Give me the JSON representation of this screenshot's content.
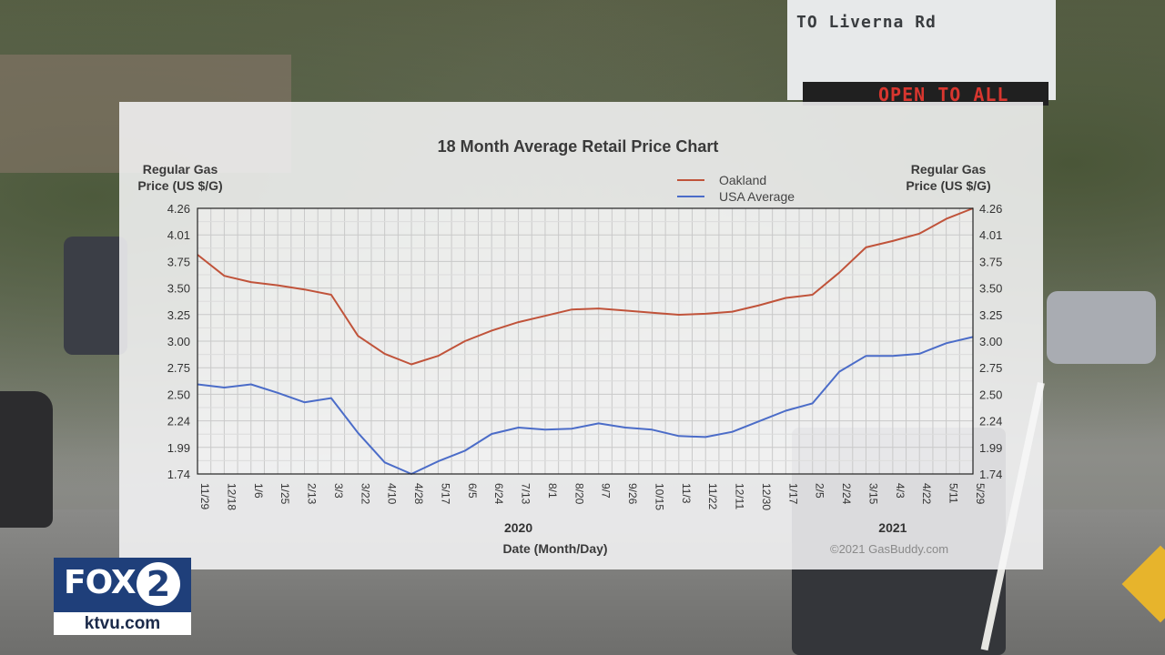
{
  "background": {
    "sign_text": "TO Liverna Rd",
    "led_text": "OPEN TO ALL"
  },
  "logo": {
    "brand": "FOX",
    "channel": "2",
    "url": "ktvu.com",
    "color": "#1f3f7a"
  },
  "chart_data": {
    "type": "line",
    "title": "18 Month Average Retail Price Chart",
    "ylabel_left": "Regular Gas Price (US $/G)",
    "ylabel_right": "Regular Gas Price (US $/G)",
    "xlabel": "Date (Month/Day)",
    "watermark": "©2021 GasBuddy.com",
    "years": [
      {
        "label": "2020",
        "at": "7/13"
      },
      {
        "label": "2021",
        "at": "4/3"
      }
    ],
    "ylim": [
      1.74,
      4.26
    ],
    "yticks": [
      "4.26",
      "4.01",
      "3.75",
      "3.50",
      "3.25",
      "3.00",
      "2.75",
      "2.50",
      "2.24",
      "1.99",
      "1.74"
    ],
    "x": [
      "11/29",
      "12/18",
      "1/6",
      "1/25",
      "2/13",
      "3/3",
      "3/22",
      "4/10",
      "4/28",
      "5/17",
      "6/5",
      "6/24",
      "7/13",
      "8/1",
      "8/20",
      "9/7",
      "9/26",
      "10/15",
      "11/3",
      "11/22",
      "12/11",
      "12/30",
      "1/17",
      "2/5",
      "2/24",
      "3/15",
      "4/3",
      "4/22",
      "5/11",
      "5/29"
    ],
    "grid": true,
    "legend_position": "top-right",
    "series": [
      {
        "name": "Oakland",
        "color": "#c0533a",
        "values": [
          3.82,
          3.62,
          3.56,
          3.53,
          3.49,
          3.44,
          3.05,
          2.88,
          2.78,
          2.86,
          3.0,
          3.1,
          3.18,
          3.24,
          3.3,
          3.31,
          3.29,
          3.27,
          3.25,
          3.26,
          3.28,
          3.34,
          3.41,
          3.44,
          3.65,
          3.89,
          3.95,
          4.02,
          4.16,
          4.26
        ]
      },
      {
        "name": "USA Average",
        "color": "#4b6cc8",
        "values": [
          2.59,
          2.56,
          2.59,
          2.51,
          2.42,
          2.46,
          2.13,
          1.85,
          1.74,
          1.86,
          1.96,
          2.12,
          2.18,
          2.16,
          2.17,
          2.22,
          2.18,
          2.16,
          2.1,
          2.09,
          2.14,
          2.24,
          2.34,
          2.41,
          2.71,
          2.86,
          2.86,
          2.88,
          2.98,
          3.04
        ]
      }
    ]
  }
}
